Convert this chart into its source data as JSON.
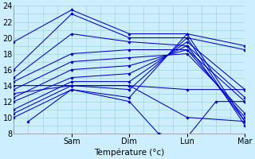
{
  "xlabel": "Température (°c)",
  "xlim": [
    0,
    96
  ],
  "ylim": [
    8,
    24
  ],
  "yticks": [
    8,
    10,
    12,
    14,
    16,
    18,
    20,
    22,
    24
  ],
  "xtick_positions": [
    24,
    48,
    72,
    96
  ],
  "xtick_labels": [
    "Sam",
    "Dim",
    "Lun",
    "Mar"
  ],
  "bg_color": "#cceeff",
  "grid_color": "#99cccc",
  "line_color": "#0000cc",
  "series": [
    {
      "x": [
        0,
        24,
        48,
        72,
        96
      ],
      "y": [
        19.5,
        23.5,
        20.5,
        20.5,
        9.5
      ]
    },
    {
      "x": [
        0,
        24,
        48,
        72,
        96
      ],
      "y": [
        16.0,
        23.0,
        20.0,
        20.0,
        9.0
      ]
    },
    {
      "x": [
        0,
        24,
        48,
        72,
        96
      ],
      "y": [
        15.0,
        20.5,
        19.5,
        19.0,
        9.5
      ]
    },
    {
      "x": [
        0,
        24,
        48,
        72,
        96
      ],
      "y": [
        14.5,
        18.0,
        18.5,
        18.5,
        10.0
      ]
    },
    {
      "x": [
        0,
        24,
        48,
        72,
        96
      ],
      "y": [
        13.5,
        17.0,
        17.5,
        18.0,
        10.5
      ]
    },
    {
      "x": [
        0,
        24,
        48,
        72,
        96
      ],
      "y": [
        12.5,
        16.0,
        16.5,
        18.5,
        12.0
      ]
    },
    {
      "x": [
        0,
        24,
        48,
        72,
        96
      ],
      "y": [
        12.0,
        15.0,
        15.5,
        19.0,
        12.5
      ]
    },
    {
      "x": [
        0,
        24,
        48,
        72,
        96
      ],
      "y": [
        11.0,
        14.5,
        14.5,
        19.5,
        13.5
      ]
    },
    {
      "x": [
        0,
        24,
        48,
        72,
        96
      ],
      "y": [
        10.5,
        14.0,
        13.5,
        20.0,
        18.5
      ]
    },
    {
      "x": [
        0,
        24,
        48,
        72,
        96
      ],
      "y": [
        10.0,
        13.5,
        12.5,
        20.5,
        19.0
      ]
    },
    {
      "x": [
        6,
        24,
        48,
        60,
        72,
        84,
        96
      ],
      "y": [
        9.5,
        13.5,
        12.0,
        8.0,
        7.5,
        12.0,
        12.0
      ]
    },
    {
      "x": [
        0,
        24,
        48,
        72,
        96
      ],
      "y": [
        14.0,
        14.0,
        14.0,
        13.5,
        13.5
      ]
    },
    {
      "x": [
        0,
        24,
        48,
        72,
        96
      ],
      "y": [
        13.0,
        14.0,
        14.0,
        10.0,
        9.5
      ]
    }
  ]
}
